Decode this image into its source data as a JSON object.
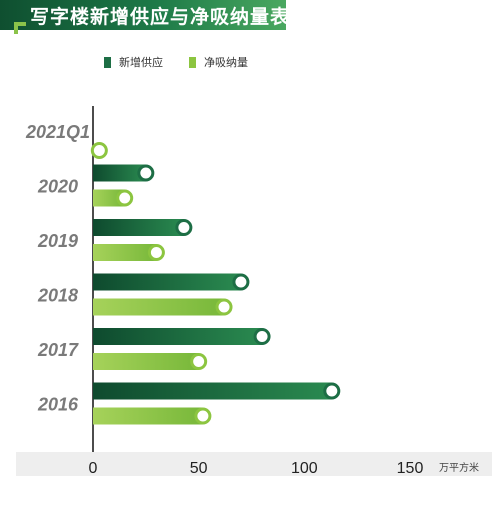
{
  "chart_data": {
    "type": "bar",
    "orientation": "horizontal",
    "title": "写字楼新增供应与净吸纳量表现",
    "categories": [
      "2021Q1",
      "2020",
      "2019",
      "2018",
      "2017",
      "2016"
    ],
    "series": [
      {
        "name": "新增供应",
        "values": [
          null,
          25,
          43,
          70,
          80,
          113
        ],
        "color": "#1d6e45"
      },
      {
        "name": "净吸纳量",
        "values": [
          3,
          15,
          30,
          62,
          50,
          52
        ],
        "color": "#8cc540"
      }
    ],
    "xlim": [
      0,
      150
    ],
    "xticks": [
      "0",
      "50",
      "100",
      "150"
    ],
    "unit": "万平方米",
    "legend_position": "top"
  }
}
